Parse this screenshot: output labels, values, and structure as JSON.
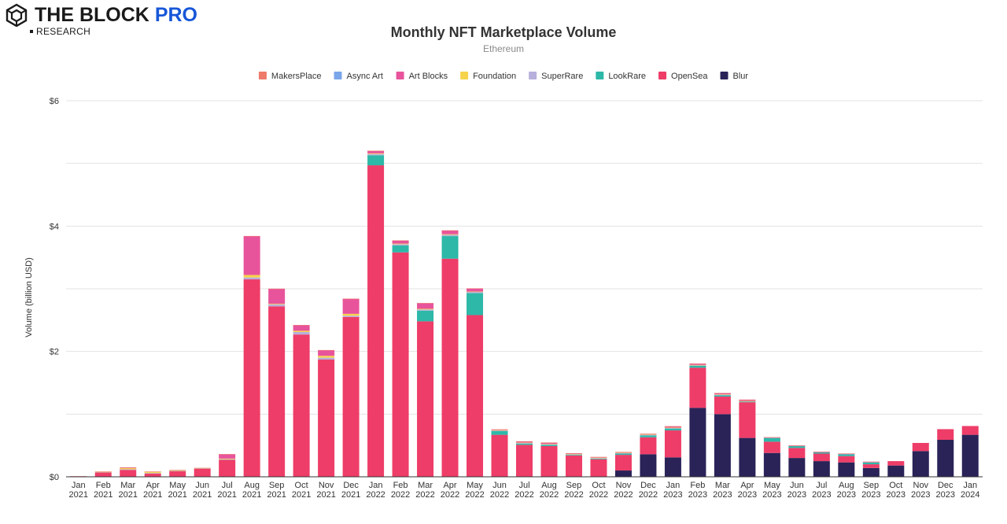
{
  "brand": {
    "name": "THE BLOCK",
    "pro": "PRO",
    "sub": "RESEARCH"
  },
  "chart_data": {
    "type": "bar",
    "stacked": true,
    "title": "Monthly NFT Marketplace Volume",
    "subtitle": "Ethereum",
    "ylabel": "Volume (billion USD)",
    "ylim": [
      0,
      6
    ],
    "yticks": [
      {
        "value": 0,
        "label": "$0"
      },
      {
        "value": 2,
        "label": "$2"
      },
      {
        "value": 4,
        "label": "$4"
      },
      {
        "value": 6,
        "label": "$6"
      }
    ],
    "grid": true,
    "legend_position": "top",
    "categories": [
      [
        "Jan",
        "2021"
      ],
      [
        "Feb",
        "2021"
      ],
      [
        "Mar",
        "2021"
      ],
      [
        "Apr",
        "2021"
      ],
      [
        "May",
        "2021"
      ],
      [
        "Jun",
        "2021"
      ],
      [
        "Jul",
        "2021"
      ],
      [
        "Aug",
        "2021"
      ],
      [
        "Sep",
        "2021"
      ],
      [
        "Oct",
        "2021"
      ],
      [
        "Nov",
        "2021"
      ],
      [
        "Dec",
        "2021"
      ],
      [
        "Jan",
        "2022"
      ],
      [
        "Feb",
        "2022"
      ],
      [
        "Mar",
        "2022"
      ],
      [
        "Apr",
        "2022"
      ],
      [
        "May",
        "2022"
      ],
      [
        "Jun",
        "2022"
      ],
      [
        "Jul",
        "2022"
      ],
      [
        "Aug",
        "2022"
      ],
      [
        "Sep",
        "2022"
      ],
      [
        "Oct",
        "2022"
      ],
      [
        "Nov",
        "2022"
      ],
      [
        "Dec",
        "2022"
      ],
      [
        "Jan",
        "2023"
      ],
      [
        "Feb",
        "2023"
      ],
      [
        "Mar",
        "2023"
      ],
      [
        "Apr",
        "2023"
      ],
      [
        "May",
        "2023"
      ],
      [
        "Jun",
        "2023"
      ],
      [
        "Jul",
        "2023"
      ],
      [
        "Aug",
        "2023"
      ],
      [
        "Sep",
        "2023"
      ],
      [
        "Oct",
        "2023"
      ],
      [
        "Nov",
        "2023"
      ],
      [
        "Dec",
        "2023"
      ],
      [
        "Jan",
        "2024"
      ]
    ],
    "series": [
      {
        "name": "Blur",
        "color": "#2a2358",
        "values": [
          0,
          0,
          0,
          0,
          0,
          0,
          0,
          0,
          0,
          0,
          0,
          0,
          0,
          0,
          0,
          0,
          0,
          0,
          0,
          0,
          0,
          0,
          0.1,
          0.36,
          0.31,
          1.1,
          1.0,
          0.62,
          0.38,
          0.3,
          0.25,
          0.23,
          0.14,
          0.18,
          0.41,
          0.59,
          0.67
        ]
      },
      {
        "name": "OpenSea",
        "color": "#ee3d68",
        "values": [
          0.005,
          0.07,
          0.11,
          0.05,
          0.09,
          0.13,
          0.27,
          3.15,
          2.72,
          2.27,
          1.87,
          2.55,
          4.97,
          3.58,
          2.48,
          3.48,
          2.58,
          0.67,
          0.51,
          0.49,
          0.34,
          0.28,
          0.25,
          0.27,
          0.43,
          0.64,
          0.28,
          0.57,
          0.18,
          0.16,
          0.12,
          0.1,
          0.06,
          0.07,
          0.13,
          0.17,
          0.14
        ]
      },
      {
        "name": "LookRare",
        "color": "#2db8a8",
        "values": [
          0,
          0,
          0,
          0,
          0,
          0,
          0,
          0,
          0,
          0,
          0,
          0,
          0.16,
          0.11,
          0.17,
          0.36,
          0.35,
          0.06,
          0.02,
          0.02,
          0.01,
          0.01,
          0.02,
          0.03,
          0.03,
          0.03,
          0.02,
          0.01,
          0.06,
          0.03,
          0.02,
          0.03,
          0.03,
          0,
          0,
          0,
          0
        ]
      },
      {
        "name": "SuperRare",
        "color": "#b6b0dc",
        "values": [
          0.003,
          0.005,
          0.01,
          0.01,
          0.005,
          0.005,
          0.01,
          0.03,
          0.03,
          0.04,
          0.03,
          0.02,
          0.02,
          0.02,
          0.02,
          0.02,
          0.02,
          0.01,
          0.01,
          0.01,
          0.01,
          0.01,
          0.01,
          0.01,
          0.01,
          0.01,
          0.01,
          0.005,
          0.005,
          0.005,
          0.005,
          0.005,
          0.005,
          0,
          0,
          0,
          0
        ]
      },
      {
        "name": "Foundation",
        "color": "#f6d34a",
        "values": [
          0,
          0.005,
          0.02,
          0.02,
          0.01,
          0.005,
          0.01,
          0.04,
          0.01,
          0.02,
          0.03,
          0.03,
          0.01,
          0.01,
          0.01,
          0.01,
          0.005,
          0.005,
          0.005,
          0.005,
          0.005,
          0.005,
          0.005,
          0.005,
          0.005,
          0.005,
          0.005,
          0.005,
          0,
          0,
          0,
          0,
          0,
          0,
          0,
          0,
          0
        ]
      },
      {
        "name": "Art Blocks",
        "color": "#e8549c",
        "values": [
          0,
          0,
          0.005,
          0,
          0,
          0,
          0.07,
          0.62,
          0.24,
          0.09,
          0.09,
          0.24,
          0.04,
          0.05,
          0.09,
          0.06,
          0.05,
          0.01,
          0.02,
          0.02,
          0.01,
          0.01,
          0.01,
          0.01,
          0.02,
          0.02,
          0.02,
          0.02,
          0.005,
          0.005,
          0.005,
          0.005,
          0.005,
          0,
          0,
          0,
          0
        ]
      },
      {
        "name": "Async Art",
        "color": "#7aa6ea",
        "values": [
          0,
          0,
          0,
          0,
          0,
          0,
          0,
          0,
          0,
          0,
          0,
          0,
          0,
          0,
          0,
          0,
          0,
          0,
          0,
          0,
          0,
          0,
          0,
          0,
          0,
          0,
          0,
          0,
          0,
          0,
          0,
          0,
          0,
          0,
          0,
          0,
          0
        ]
      },
      {
        "name": "MakersPlace",
        "color": "#ee7a6a",
        "values": [
          0.002,
          0.005,
          0.005,
          0.005,
          0.005,
          0.002,
          0.002,
          0.002,
          0.002,
          0.002,
          0.002,
          0.002,
          0.002,
          0.002,
          0.002,
          0.002,
          0.002,
          0.002,
          0.002,
          0.002,
          0.002,
          0.002,
          0.002,
          0.002,
          0.002,
          0.002,
          0.002,
          0.002,
          0.002,
          0.002,
          0.002,
          0.002,
          0.002,
          0,
          0,
          0,
          0
        ]
      }
    ],
    "legend_order": [
      "MakersPlace",
      "Async Art",
      "Art Blocks",
      "Foundation",
      "SuperRare",
      "LookRare",
      "OpenSea",
      "Blur"
    ]
  }
}
